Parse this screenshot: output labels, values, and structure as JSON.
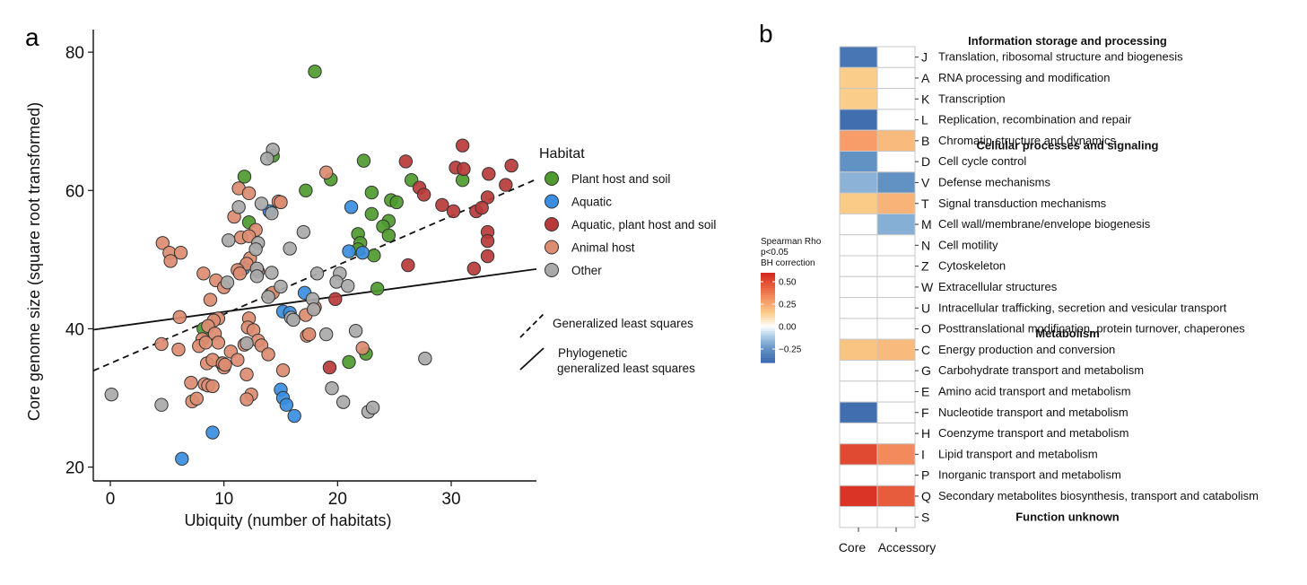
{
  "panel_labels": {
    "a": "a",
    "b": "b"
  },
  "chart_data": [
    {
      "type": "scatter",
      "xlabel": "Ubiquity (number of habitats)",
      "ylabel": "Core genome size (square root transformed)",
      "xlim": [
        -1.5,
        37.5
      ],
      "ylim": [
        18,
        83
      ],
      "x_ticks": [
        0,
        10,
        20,
        30
      ],
      "y_ticks": [
        20,
        40,
        60,
        80
      ],
      "grid": false,
      "legend_title": "Habitat",
      "legend_position": "right",
      "series": [
        {
          "name": "Plant host and soil",
          "color": "#4e9a2e",
          "points": [
            [
              18,
              77.2
            ],
            [
              11.8,
              62
            ],
            [
              14.3,
              65
            ],
            [
              22.3,
              64.3
            ],
            [
              17.2,
              60
            ],
            [
              19.4,
              61.6
            ],
            [
              23,
              59.7
            ],
            [
              12.2,
              55.4
            ],
            [
              21.8,
              53.7
            ],
            [
              22,
              52.4
            ],
            [
              23,
              56.6
            ],
            [
              24.7,
              58.6
            ],
            [
              25.2,
              58.3
            ],
            [
              24.5,
              55.6
            ],
            [
              24,
              54.8
            ],
            [
              24.5,
              53.5
            ],
            [
              23.2,
              50.6
            ],
            [
              21.8,
              51.5
            ],
            [
              23.5,
              45.8
            ],
            [
              26.5,
              61.5
            ],
            [
              31,
              61.5
            ],
            [
              8.2,
              40
            ],
            [
              22.5,
              36.4
            ],
            [
              21,
              35.2
            ]
          ]
        },
        {
          "name": "Aquatic",
          "color": "#3a8de0",
          "points": [
            [
              6.3,
              21.2
            ],
            [
              9,
              25
            ],
            [
              11.7,
              48.7
            ],
            [
              14,
              57
            ],
            [
              21.2,
              57.6
            ],
            [
              21,
              51.2
            ],
            [
              22.2,
              51
            ],
            [
              17.1,
              45.2
            ],
            [
              15.2,
              42.5
            ],
            [
              15.8,
              42.3
            ],
            [
              15,
              31.2
            ],
            [
              15.2,
              30
            ],
            [
              15.5,
              29
            ],
            [
              16.2,
              27.4
            ]
          ]
        },
        {
          "name": "Aquatic, plant host and soil",
          "color": "#b93a3a",
          "points": [
            [
              26,
              64.2
            ],
            [
              31,
              66.5
            ],
            [
              30.4,
              63.3
            ],
            [
              31.1,
              63.1
            ],
            [
              35.3,
              63.6
            ],
            [
              33.3,
              62.4
            ],
            [
              27.2,
              60.4
            ],
            [
              27.6,
              59.4
            ],
            [
              34.8,
              60.8
            ],
            [
              33.2,
              59
            ],
            [
              29.2,
              57.9
            ],
            [
              30.2,
              57
            ],
            [
              32.2,
              57
            ],
            [
              32.7,
              57.5
            ],
            [
              33.2,
              54
            ],
            [
              33.2,
              52.7
            ],
            [
              33.2,
              50.5
            ],
            [
              32,
              48.7
            ],
            [
              26.2,
              49.2
            ],
            [
              19.8,
              44.3
            ],
            [
              19.3,
              34.4
            ]
          ]
        },
        {
          "name": "Animal host",
          "color": "#dc8c70",
          "points": [
            [
              4.6,
              52.4
            ],
            [
              5.2,
              51
            ],
            [
              5.3,
              49.8
            ],
            [
              6.2,
              51
            ],
            [
              11.3,
              60.3
            ],
            [
              12.2,
              59.6
            ],
            [
              10.9,
              56.2
            ],
            [
              11.5,
              53.2
            ],
            [
              12.8,
              54.3
            ],
            [
              12.2,
              53.4
            ],
            [
              12.3,
              50.2
            ],
            [
              12,
              49.4
            ],
            [
              13,
              48.3
            ],
            [
              14.8,
              58.4
            ],
            [
              15,
              58.3
            ],
            [
              19,
              62.6
            ],
            [
              8.2,
              48
            ],
            [
              9.3,
              47
            ],
            [
              10,
              46
            ],
            [
              11.2,
              48.5
            ],
            [
              11.4,
              48
            ],
            [
              14.1,
              45
            ],
            [
              14.3,
              45.2
            ],
            [
              18,
              43.1
            ],
            [
              17.2,
              42
            ],
            [
              8.8,
              44.2
            ],
            [
              9.5,
              41.5
            ],
            [
              9.1,
              41.2
            ],
            [
              12.2,
              41.5
            ],
            [
              12.1,
              40.2
            ],
            [
              12.6,
              39.8
            ],
            [
              8.1,
              38.5
            ],
            [
              8.6,
              40.4
            ],
            [
              9.2,
              39.3
            ],
            [
              9.5,
              38
            ],
            [
              9.8,
              35
            ],
            [
              10,
              34.4
            ],
            [
              7.8,
              37.5
            ],
            [
              8.4,
              38
            ],
            [
              10.6,
              36.7
            ],
            [
              11.2,
              35.5
            ],
            [
              11.8,
              37.7
            ],
            [
              13,
              38.3
            ],
            [
              13.3,
              37.6
            ],
            [
              13.9,
              36.3
            ],
            [
              4.5,
              37.8
            ],
            [
              6,
              37
            ],
            [
              8.5,
              35
            ],
            [
              9,
              35.5
            ],
            [
              9.9,
              35
            ],
            [
              10.1,
              34.8
            ],
            [
              12,
              33.4
            ],
            [
              15.2,
              34
            ],
            [
              8.3,
              32
            ],
            [
              8.6,
              31.8
            ],
            [
              9,
              31.7
            ],
            [
              7.1,
              32.2
            ],
            [
              12.4,
              30.5
            ],
            [
              12,
              29.8
            ],
            [
              7.2,
              29.5
            ],
            [
              7.6,
              29.9
            ],
            [
              17.3,
              39
            ],
            [
              17.5,
              39.2
            ],
            [
              6.1,
              41.7
            ],
            [
              22.2,
              37.2
            ]
          ]
        },
        {
          "name": "Other",
          "color": "#a9a9a9",
          "points": [
            [
              14.3,
              65.9
            ],
            [
              13.8,
              64.6
            ],
            [
              13.3,
              58.1
            ],
            [
              11.3,
              57.6
            ],
            [
              14.2,
              56.7
            ],
            [
              13,
              52.4
            ],
            [
              12.8,
              51.5
            ],
            [
              17,
              54
            ],
            [
              15.8,
              51.6
            ],
            [
              10.4,
              52.8
            ],
            [
              14.2,
              48.1
            ],
            [
              12.9,
              48.7
            ],
            [
              12.9,
              47.6
            ],
            [
              15,
              46.1
            ],
            [
              18.2,
              48
            ],
            [
              20.2,
              48
            ],
            [
              19.9,
              46.8
            ],
            [
              20.9,
              46.2
            ],
            [
              13.9,
              44.6
            ],
            [
              17.8,
              44.3
            ],
            [
              17.9,
              42.8
            ],
            [
              10.3,
              46.7
            ],
            [
              15.9,
              41.6
            ],
            [
              16.1,
              41.3
            ],
            [
              19,
              39.2
            ],
            [
              21.6,
              39.7
            ],
            [
              12,
              37.9
            ],
            [
              27.7,
              35.7
            ],
            [
              0.1,
              30.5
            ],
            [
              4.5,
              29
            ],
            [
              19.5,
              31.4
            ],
            [
              20.5,
              29.4
            ],
            [
              22.7,
              28
            ],
            [
              23.1,
              28.6
            ]
          ]
        }
      ],
      "fit_lines": [
        {
          "name": "Generalized least squares",
          "style": "dashed",
          "intercept": 35.0,
          "slope": 0.71
        },
        {
          "name": "Phylogenetic generalized least squares",
          "style": "solid",
          "intercept": 40.2,
          "slope": 0.225
        }
      ],
      "fit_legend": [
        {
          "style": "dashed",
          "label_lines": [
            "Generalized least squares"
          ]
        },
        {
          "style": "solid",
          "label_lines": [
            "Phylogenetic",
            "generalized least squares"
          ]
        }
      ]
    },
    {
      "type": "heatmap",
      "columns": [
        "Core",
        "Accessory"
      ],
      "colorbar": {
        "title_lines": [
          "Spearman Rho",
          "p<0.05",
          "BH correction"
        ],
        "ticks": [
          0.5,
          0.25,
          0.0,
          -0.25
        ],
        "tick_labels": [
          "0.50",
          "0.25",
          "0.00",
          "−0.25"
        ],
        "range": [
          -0.4,
          0.6
        ]
      },
      "rows": [
        {
          "code": "J",
          "label": "Translation, ribosomal structure and biogenesis",
          "values": [
            -0.35,
            null
          ],
          "header": "Information storage and processing"
        },
        {
          "code": "A",
          "label": "RNA processing and modification",
          "values": [
            0.15,
            null
          ]
        },
        {
          "code": "K",
          "label": "Transcription",
          "values": [
            0.15,
            null
          ]
        },
        {
          "code": "L",
          "label": "Replication, recombination and repair",
          "values": [
            -0.38,
            null
          ]
        },
        {
          "code": "B",
          "label": "Chromatin structure and dynamics",
          "values": [
            0.28,
            0.2
          ]
        },
        {
          "code": "D",
          "label": "Cell cycle control",
          "values": [
            -0.25,
            null
          ],
          "header": "Cellular processes and signaling"
        },
        {
          "code": "V",
          "label": "Defense mechanisms",
          "values": [
            -0.17,
            -0.25
          ]
        },
        {
          "code": "T",
          "label": "Signal transduction mechanisms",
          "values": [
            0.16,
            0.22
          ]
        },
        {
          "code": "M",
          "label": "Cell wall/membrane/envelope biogenesis",
          "values": [
            null,
            -0.18
          ]
        },
        {
          "code": "N",
          "label": "Cell motility",
          "values": [
            null,
            null
          ]
        },
        {
          "code": "Z",
          "label": "Cytoskeleton",
          "values": [
            null,
            null
          ]
        },
        {
          "code": "W",
          "label": "Extracellular structures",
          "values": [
            null,
            null
          ]
        },
        {
          "code": "U",
          "label": "Intracellular trafficking, secretion and vesicular transport",
          "values": [
            null,
            null
          ]
        },
        {
          "code": "O",
          "label": "Posttranslational modification, protein turnover, chaperones",
          "values": [
            null,
            null
          ]
        },
        {
          "code": "C",
          "label": "Energy production and conversion",
          "values": [
            0.18,
            0.2
          ],
          "header": "Metabolism"
        },
        {
          "code": "G",
          "label": "Carbohydrate transport and metabolism",
          "values": [
            null,
            null
          ]
        },
        {
          "code": "E",
          "label": "Amino acid transport and metabolism",
          "values": [
            null,
            null
          ]
        },
        {
          "code": "F",
          "label": "Nucleotide transport and metabolism",
          "values": [
            -0.38,
            null
          ]
        },
        {
          "code": "H",
          "label": "Coenzyme transport and metabolism",
          "values": [
            null,
            null
          ]
        },
        {
          "code": "I",
          "label": "Lipid transport and metabolism",
          "values": [
            0.5,
            0.33
          ]
        },
        {
          "code": "P",
          "label": "Inorganic transport and metabolism",
          "values": [
            null,
            null
          ]
        },
        {
          "code": "Q",
          "label": "Secondary metabolites biosynthesis, transport and catabolism",
          "values": [
            0.56,
            0.45
          ]
        },
        {
          "code": "S",
          "label": "",
          "values": [
            null,
            null
          ],
          "header": "Function unknown"
        }
      ]
    }
  ]
}
